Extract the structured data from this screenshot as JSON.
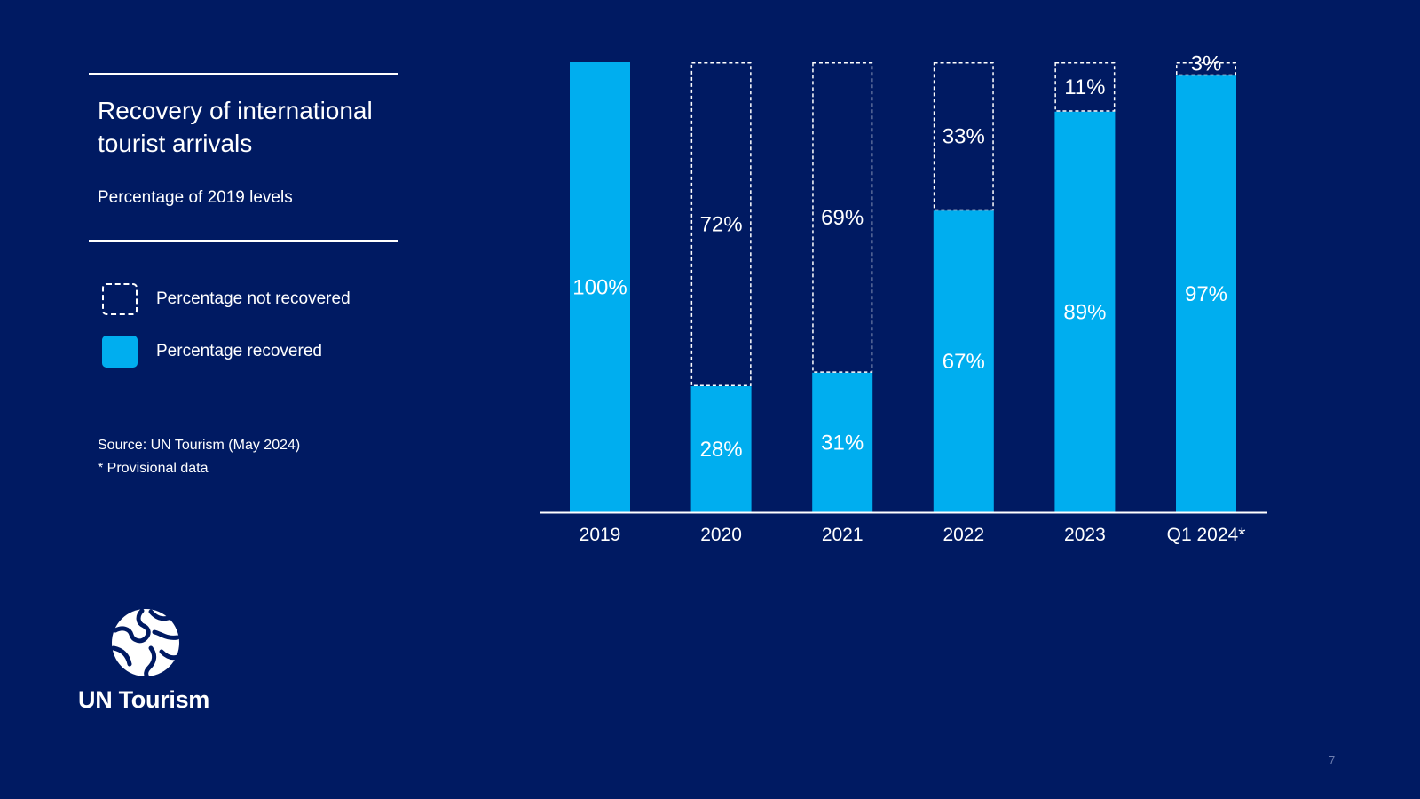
{
  "slide": {
    "title": "Recovery of international tourist arrivals",
    "subtitle": "Percentage of 2019 levels",
    "legend": [
      {
        "label": "Percentage not recovered",
        "style": "dashed-outline"
      },
      {
        "label": "Percentage recovered",
        "style": "filled"
      }
    ],
    "source_line1": "Source: UN Tourism (May 2024)",
    "source_line2": "* Provisional data",
    "logo_text": "UN Tourism",
    "logo_icon": "globe-icon",
    "page_number": "7"
  },
  "colors": {
    "background": "#001A62",
    "recovered": "#00AEEF",
    "not_recovered_outline": "#FFFFFF",
    "text": "#FFFFFF"
  },
  "chart_data": {
    "type": "bar",
    "stacked": true,
    "title": "Recovery of international tourist arrivals",
    "subtitle": "Percentage of 2019 levels",
    "xlabel": "",
    "ylabel": "",
    "ylim": [
      0,
      100
    ],
    "grid": false,
    "categories": [
      "2019",
      "2020",
      "2021",
      "2022",
      "2023",
      "Q1 2024*"
    ],
    "series": [
      {
        "name": "Percentage recovered",
        "values": [
          100,
          28,
          31,
          67,
          89,
          97
        ],
        "labels": [
          "100%",
          "28%",
          "31%",
          "67%",
          "89%",
          "97%"
        ]
      },
      {
        "name": "Percentage not recovered",
        "values": [
          0,
          72,
          69,
          33,
          11,
          3
        ],
        "labels": [
          "",
          "72%",
          "69%",
          "33%",
          "11%",
          "3%"
        ]
      }
    ]
  }
}
